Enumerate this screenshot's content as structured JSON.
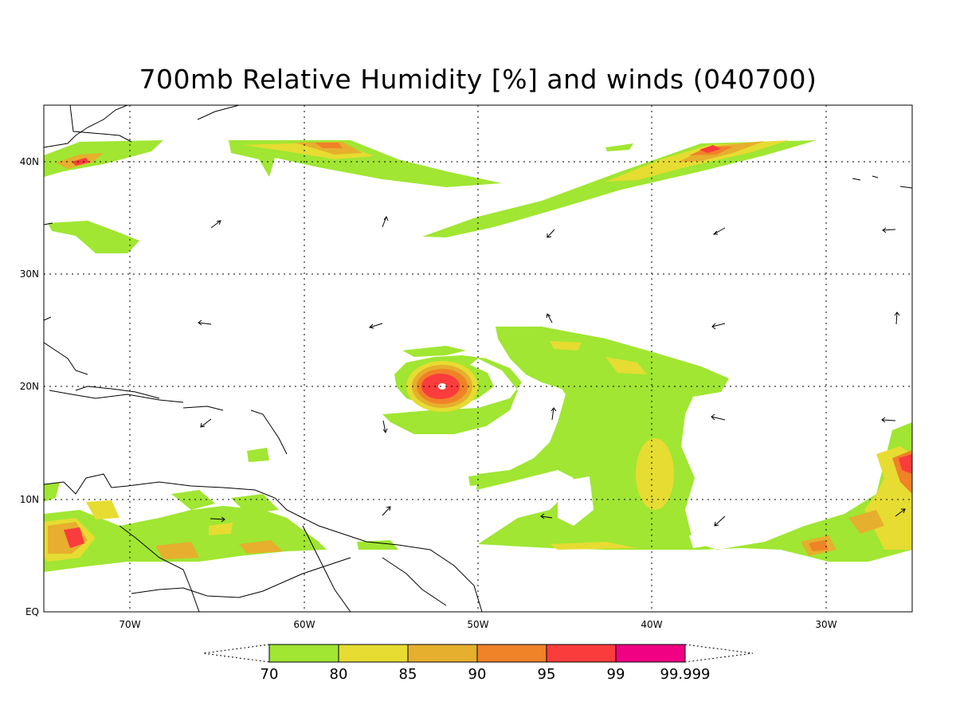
{
  "title": "700mb Relative Humidity [%] and winds (040700)",
  "lon_ticks": [
    "70W",
    "60W",
    "50W",
    "40W",
    "30W"
  ],
  "lat_ticks": [
    "40N",
    "30N",
    "20N",
    "10N",
    "EQ"
  ],
  "colorbar": {
    "bins": [
      {
        "color": "#a0e632",
        "label": "70"
      },
      {
        "color": "#e6dc32",
        "label": "80"
      },
      {
        "color": "#e6af2d",
        "label": "85"
      },
      {
        "color": "#f08228",
        "label": "90"
      },
      {
        "color": "#fa3c3c",
        "label": "95"
      },
      {
        "color": "#f00082",
        "label": "99"
      }
    ],
    "end_label": "99.999"
  }
}
